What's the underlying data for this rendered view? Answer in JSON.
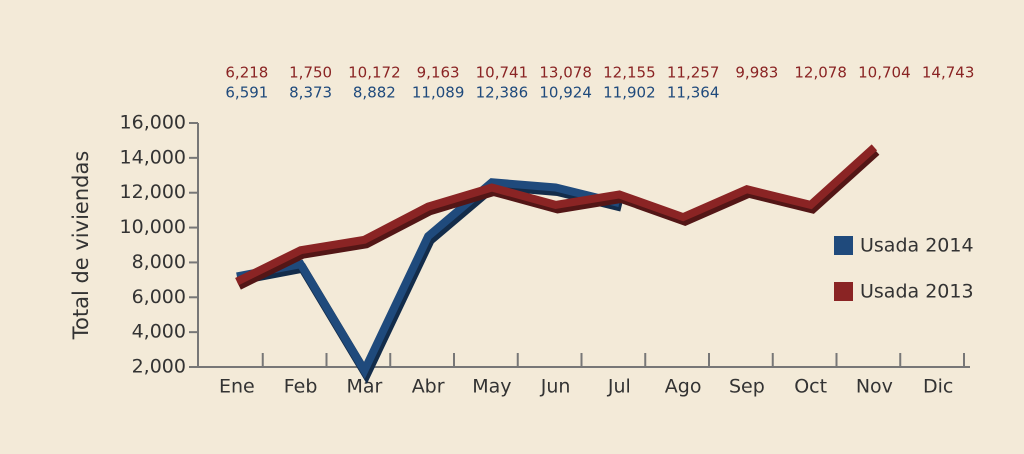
{
  "chart_data": {
    "type": "line",
    "y_axis_label": "Total de viviendas",
    "categories": [
      "Ene",
      "Feb",
      "Mar",
      "Abr",
      "May",
      "Jun",
      "Jul",
      "Ago",
      "Sep",
      "Oct",
      "Nov",
      "Dic"
    ],
    "series": [
      {
        "name": "Usada 2014",
        "color": "#1f4a7c",
        "values": [
          7200,
          7900,
          1800,
          9500,
          12600,
          12300,
          11400,
          null,
          null,
          null,
          null,
          null
        ]
      },
      {
        "name": "Usada 2013",
        "color": "#8a2424",
        "values": [
          6900,
          8700,
          9300,
          11200,
          12300,
          11300,
          11900,
          10600,
          12200,
          11300,
          14600,
          null
        ]
      }
    ],
    "annotation_rows": [
      {
        "color": "#8a2424",
        "texts": [
          "6,218",
          "1,750",
          "10,172",
          "9,163",
          "10,741",
          "13,078",
          "12,155",
          "11,257",
          "9,983",
          "12,078",
          "10,704",
          "14,743"
        ]
      },
      {
        "color": "#1f4a7c",
        "texts": [
          "6,591",
          "8,373",
          "8,882",
          "11,089",
          "12,386",
          "10,924",
          "11,902",
          "11,364"
        ]
      }
    ],
    "ylim": [
      2000,
      16000
    ],
    "yticks": [
      {
        "value": 2000,
        "label": "2,000"
      },
      {
        "value": 4000,
        "label": "4,000"
      },
      {
        "value": 6000,
        "label": "6,000"
      },
      {
        "value": 8000,
        "label": "8,000"
      },
      {
        "value": 10000,
        "label": "10,000"
      },
      {
        "value": 12000,
        "label": "12,000"
      },
      {
        "value": 14000,
        "label": "14,000"
      },
      {
        "value": 16000,
        "label": "16,000"
      }
    ],
    "legend": "right"
  }
}
